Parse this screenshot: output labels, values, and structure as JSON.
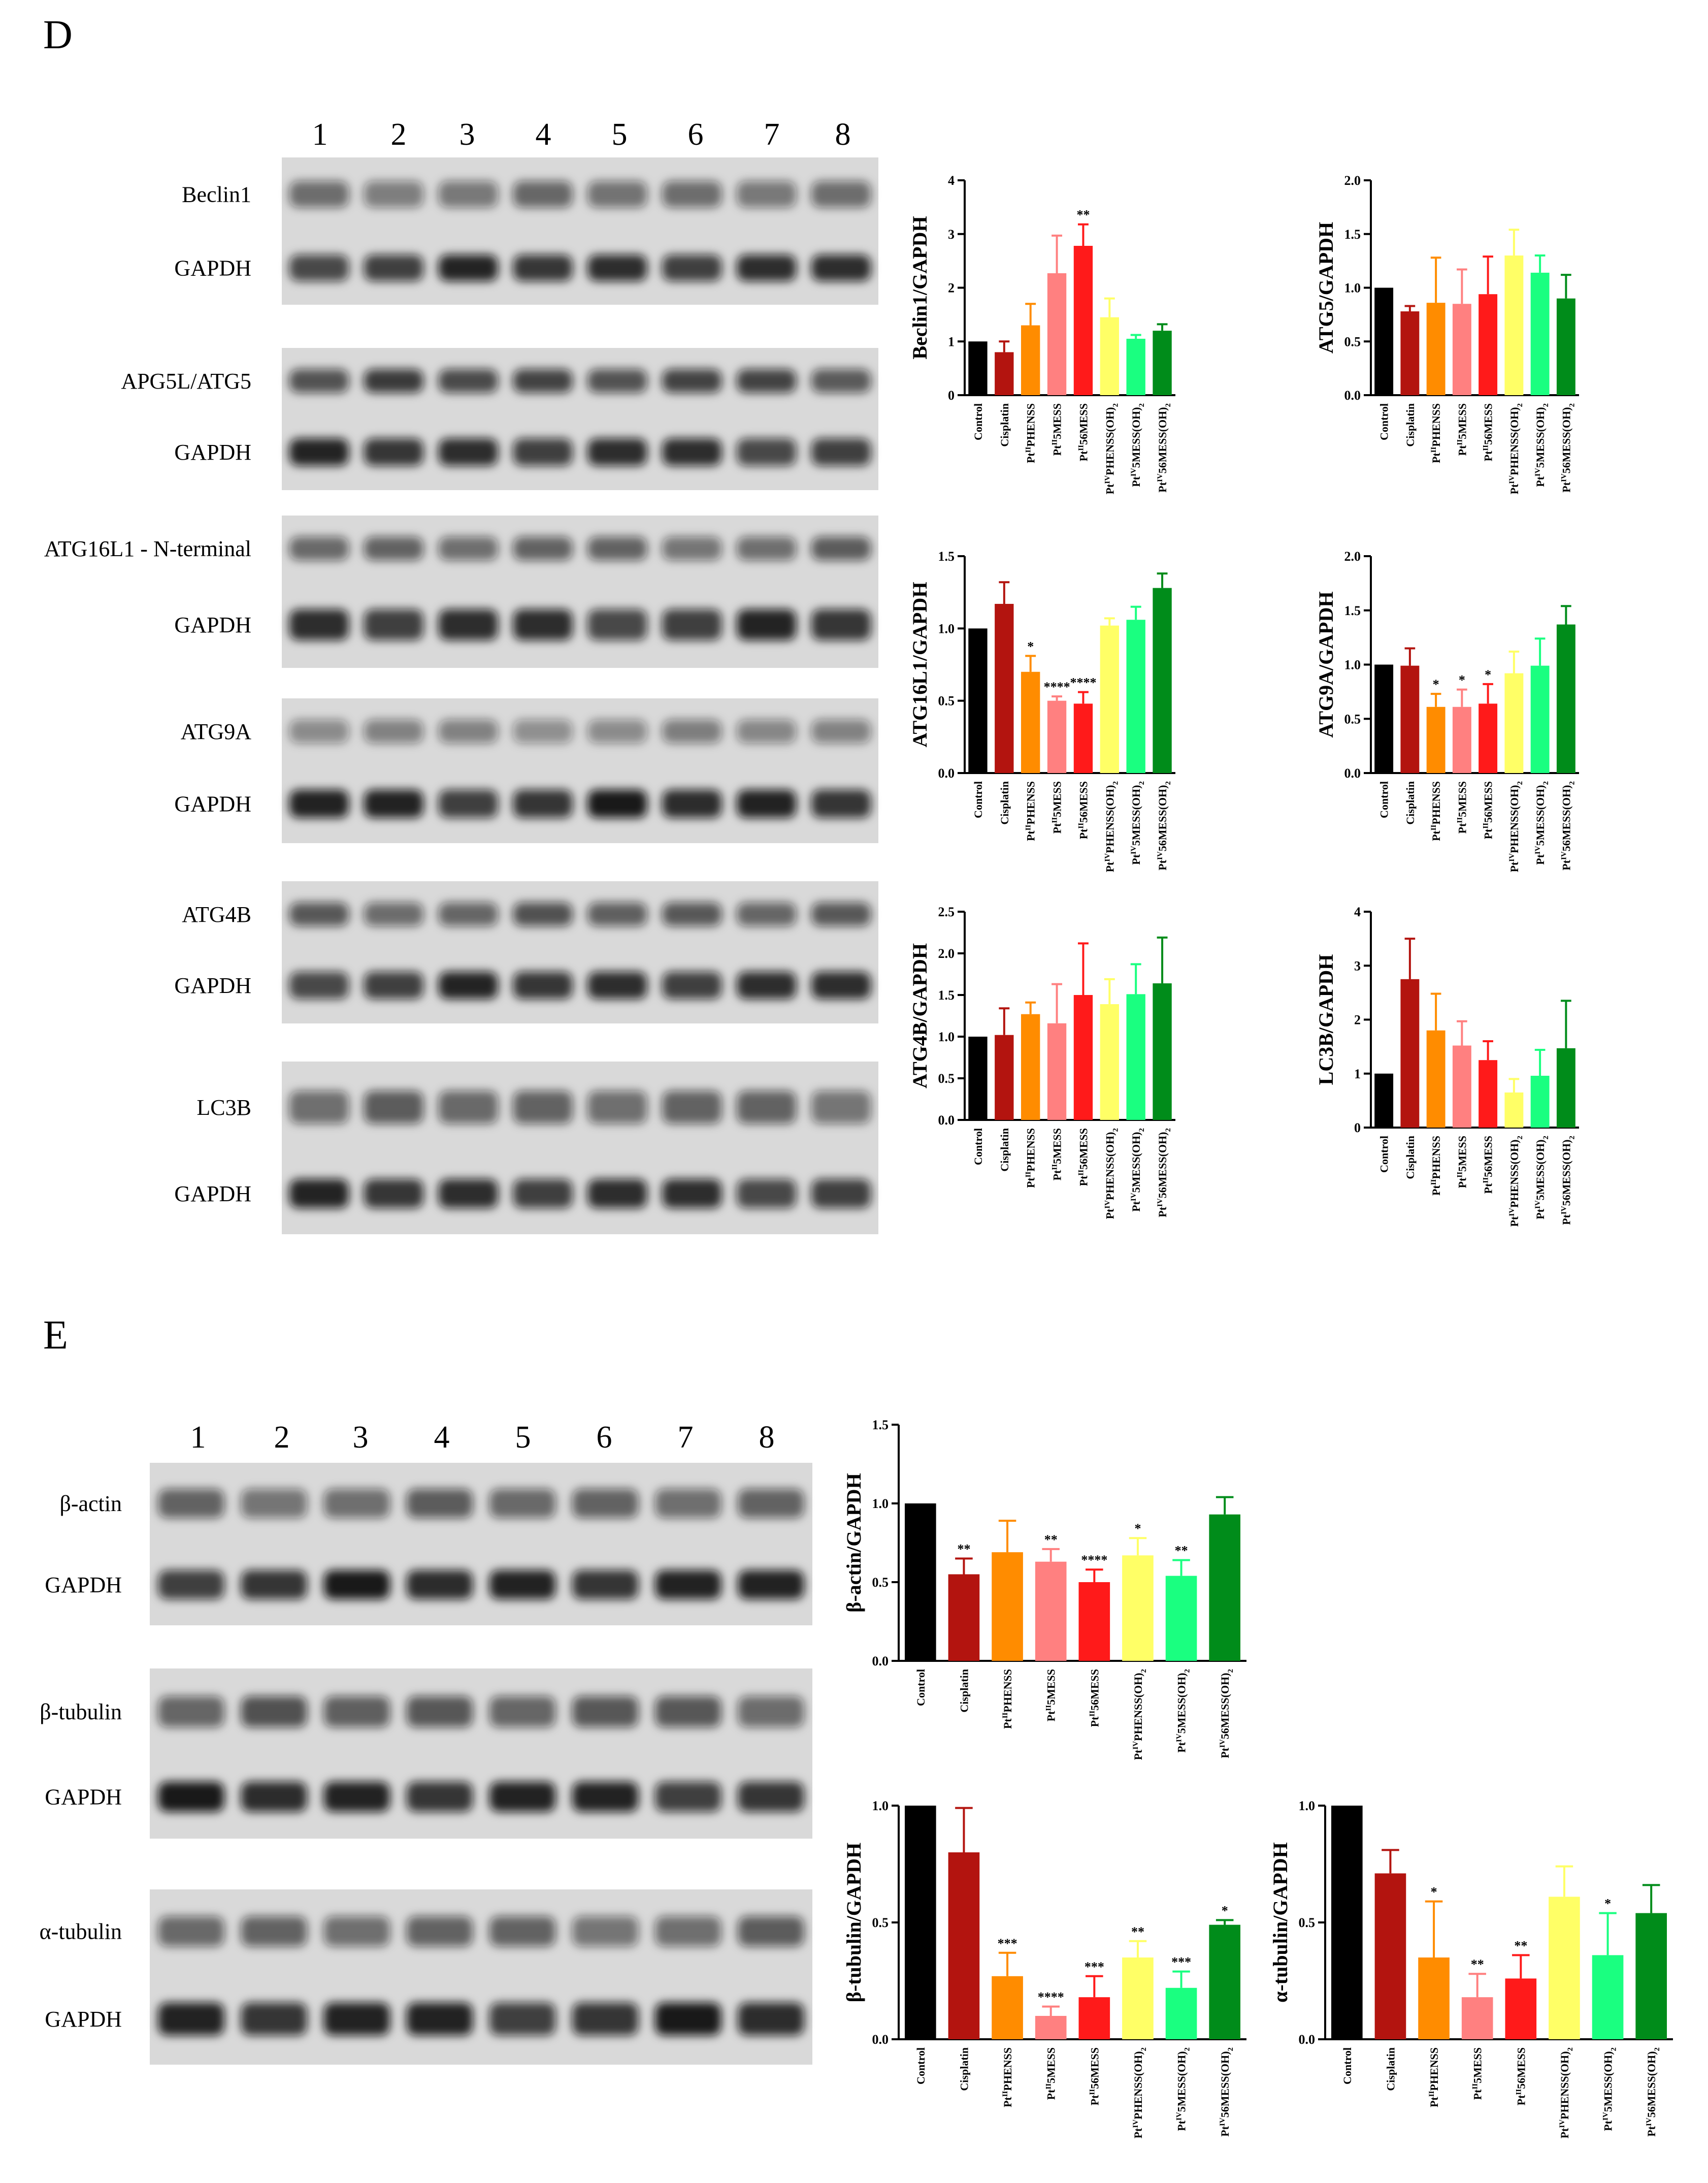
{
  "panels": {
    "D": {
      "letter": "D",
      "lanes": [
        "1",
        "2",
        "3",
        "4",
        "5",
        "6",
        "7",
        "8"
      ],
      "blots": [
        {
          "label": "Beclin1",
          "y": 310,
          "h": 145,
          "dark": 0.55
        },
        {
          "label": "GAPDH",
          "y": 455,
          "h": 145,
          "dark": 0.85
        },
        {
          "label": "APG5L/ATG5",
          "y": 685,
          "h": 130,
          "dark": 0.75
        },
        {
          "label": "GAPDH",
          "y": 815,
          "h": 150,
          "dark": 0.85
        },
        {
          "label": "ATG16L1 - N-terminal",
          "y": 1015,
          "h": 130,
          "dark": 0.6
        },
        {
          "label": "GAPDH",
          "y": 1145,
          "h": 170,
          "dark": 0.85
        },
        {
          "label": "ATG9A",
          "y": 1375,
          "h": 130,
          "dark": 0.45
        },
        {
          "label": "GAPDH",
          "y": 1505,
          "h": 155,
          "dark": 0.9
        },
        {
          "label": "ATG4B",
          "y": 1735,
          "h": 130,
          "dark": 0.65
        },
        {
          "label": "GAPDH",
          "y": 1865,
          "h": 150,
          "dark": 0.85
        },
        {
          "label": "LC3B",
          "y": 2090,
          "h": 180,
          "dark": 0.6
        },
        {
          "label": "GAPDH",
          "y": 2270,
          "h": 160,
          "dark": 0.85
        }
      ],
      "blot_labels_text": [
        "Beclin1",
        "GAPDH",
        "APG5L/ATG5",
        "GAPDH",
        "ATG16L1 - N-terminal",
        "GAPDH",
        "ATG9A",
        "GAPDH",
        "ATG4B",
        "GAPDH",
        "LC3B",
        "GAPDH"
      ]
    },
    "E": {
      "letter": "E",
      "lanes": [
        "1",
        "2",
        "3",
        "4",
        "5",
        "6",
        "7",
        "8"
      ],
      "blots": [
        {
          "label": "β-actin",
          "y": 2880,
          "h": 160,
          "dark": 0.6
        },
        {
          "label": "GAPDH",
          "y": 3040,
          "h": 160,
          "dark": 0.9
        },
        {
          "label": "β-tubulin",
          "y": 3285,
          "h": 170,
          "dark": 0.65
        },
        {
          "label": "GAPDH",
          "y": 3455,
          "h": 165,
          "dark": 0.9
        },
        {
          "label": "α-tubulin",
          "y": 3720,
          "h": 165,
          "dark": 0.6
        },
        {
          "label": "GAPDH",
          "y": 3885,
          "h": 180,
          "dark": 0.9
        }
      ]
    }
  },
  "categories": [
    "Control",
    "Cisplatin",
    "PtIIPHENSS",
    "PtII5MESS",
    "PtII56MESS",
    "PtIVPHENSS(OH)2",
    "PtIV5MESS(OH)2",
    "PtIV56MESS(OH)2"
  ],
  "category_display": [
    {
      "pre": "",
      "sup": "",
      "post": "Control",
      "sub": ""
    },
    {
      "pre": "",
      "sup": "",
      "post": "Cisplatin",
      "sub": ""
    },
    {
      "pre": "Pt",
      "sup": "II",
      "post": "PHENSS",
      "sub": ""
    },
    {
      "pre": "Pt",
      "sup": "II",
      "post": "5MESS",
      "sub": ""
    },
    {
      "pre": "Pt",
      "sup": "II",
      "post": "56MESS",
      "sub": ""
    },
    {
      "pre": "Pt",
      "sup": "IV",
      "post": "PHENSS(OH)",
      "sub": "2"
    },
    {
      "pre": "Pt",
      "sup": "IV",
      "post": "5MESS(OH)",
      "sub": "2"
    },
    {
      "pre": "Pt",
      "sup": "IV",
      "post": "56MESS(OH)",
      "sub": "2"
    }
  ],
  "colors": [
    "#000000",
    "#b3140f",
    "#ff8c00",
    "#ff8080",
    "#ff1a1a",
    "#ffff66",
    "#1aff80",
    "#008c1a"
  ],
  "chart_data": [
    {
      "type": "bar",
      "ylabel": "Beclin1/GAPDH",
      "ylim": [
        0,
        4
      ],
      "yticks": [
        "0",
        "1",
        "2",
        "3",
        "4"
      ],
      "categories": [
        "Control",
        "Cisplatin",
        "PtIIPHENSS",
        "PtII5MESS",
        "PtII56MESS",
        "PtIVPHENSS(OH)2",
        "PtIV5MESS(OH)2",
        "PtIV56MESS(OH)2"
      ],
      "values": [
        1.0,
        0.8,
        1.3,
        2.27,
        2.78,
        1.45,
        1.05,
        1.2
      ],
      "errors": [
        0,
        0.2,
        0.4,
        0.7,
        0.4,
        0.35,
        0.07,
        0.12
      ],
      "significance": [
        "",
        "",
        "",
        "",
        "**",
        "",
        "",
        ""
      ]
    },
    {
      "type": "bar",
      "ylabel": "ATG5/GAPDH",
      "ylim": [
        0,
        2
      ],
      "yticks": [
        "0.0",
        "0.5",
        "1.0",
        "1.5",
        "2.0"
      ],
      "categories": [
        "Control",
        "Cisplatin",
        "PtIIPHENSS",
        "PtII5MESS",
        "PtII56MESS",
        "PtIVPHENSS(OH)2",
        "PtIV5MESS(OH)2",
        "PtIV56MESS(OH)2"
      ],
      "values": [
        1.0,
        0.78,
        0.86,
        0.85,
        0.94,
        1.3,
        1.14,
        0.9
      ],
      "errors": [
        0,
        0.05,
        0.42,
        0.32,
        0.35,
        0.24,
        0.16,
        0.22
      ],
      "significance": [
        "",
        "",
        "",
        "",
        "",
        "",
        "",
        ""
      ]
    },
    {
      "type": "bar",
      "ylabel": "ATG16L1/GAPDH",
      "ylim": [
        0,
        1.5
      ],
      "yticks": [
        "0.0",
        "0.5",
        "1.0",
        "1.5"
      ],
      "categories": [
        "Control",
        "Cisplatin",
        "PtIIPHENSS",
        "PtII5MESS",
        "PtII56MESS",
        "PtIVPHENSS(OH)2",
        "PtIV5MESS(OH)2",
        "PtIV56MESS(OH)2"
      ],
      "values": [
        1.0,
        1.17,
        0.7,
        0.5,
        0.48,
        1.02,
        1.06,
        1.28
      ],
      "errors": [
        0,
        0.15,
        0.11,
        0.03,
        0.08,
        0.05,
        0.09,
        0.1
      ],
      "significance": [
        "",
        "",
        "*",
        "****",
        "****",
        "",
        "",
        ""
      ]
    },
    {
      "type": "bar",
      "ylabel": "ATG9A/GAPDH",
      "ylim": [
        0,
        2
      ],
      "yticks": [
        "0.0",
        "0.5",
        "1.0",
        "1.5",
        "2.0"
      ],
      "categories": [
        "Control",
        "Cisplatin",
        "PtIIPHENSS",
        "PtII5MESS",
        "PtII56MESS",
        "PtIVPHENSS(OH)2",
        "PtIV5MESS(OH)2",
        "PtIV56MESS(OH)2"
      ],
      "values": [
        1.0,
        0.99,
        0.61,
        0.61,
        0.64,
        0.92,
        0.99,
        1.37
      ],
      "errors": [
        0,
        0.16,
        0.12,
        0.16,
        0.18,
        0.2,
        0.25,
        0.17
      ],
      "significance": [
        "",
        "",
        "*",
        "*",
        "*",
        "",
        "",
        ""
      ]
    },
    {
      "type": "bar",
      "ylabel": "ATG4B/GAPDH",
      "ylim": [
        0,
        2.5
      ],
      "yticks": [
        "0.0",
        "0.5",
        "1.0",
        "1.5",
        "2.0",
        "2.5"
      ],
      "categories": [
        "Control",
        "Cisplatin",
        "PtIIPHENSS",
        "PtII5MESS",
        "PtII56MESS",
        "PtIVPHENSS(OH)2",
        "PtIV5MESS(OH)2",
        "PtIV56MESS(OH)2"
      ],
      "values": [
        1.0,
        1.02,
        1.27,
        1.16,
        1.5,
        1.39,
        1.51,
        1.64
      ],
      "errors": [
        0,
        0.32,
        0.14,
        0.47,
        0.62,
        0.3,
        0.36,
        0.55
      ],
      "significance": [
        "",
        "",
        "",
        "",
        "",
        "",
        "",
        ""
      ]
    },
    {
      "type": "bar",
      "ylabel": "LC3B/GAPDH",
      "ylim": [
        0,
        4
      ],
      "yticks": [
        "0",
        "1",
        "2",
        "3",
        "4"
      ],
      "categories": [
        "Control",
        "Cisplatin",
        "PtIIPHENSS",
        "PtII5MESS",
        "PtII56MESS",
        "PtIVPHENSS(OH)2",
        "PtIV5MESS(OH)2",
        "PtIV56MESS(OH)2"
      ],
      "values": [
        1.0,
        2.75,
        1.8,
        1.52,
        1.25,
        0.65,
        0.96,
        1.47
      ],
      "errors": [
        0,
        0.75,
        0.68,
        0.45,
        0.35,
        0.25,
        0.48,
        0.88
      ],
      "significance": [
        "",
        "",
        "",
        "",
        "",
        "",
        "",
        ""
      ]
    },
    {
      "type": "bar",
      "ylabel": "β-actin/GAPDH",
      "ylim": [
        0,
        1.5
      ],
      "yticks": [
        "0.0",
        "0.5",
        "1.0",
        "1.5"
      ],
      "categories": [
        "Control",
        "Cisplatin",
        "PtIIPHENSS",
        "PtII5MESS",
        "PtII56MESS",
        "PtIVPHENSS(OH)2",
        "PtIV5MESS(OH)2",
        "PtIV56MESS(OH)2"
      ],
      "values": [
        1.0,
        0.55,
        0.69,
        0.63,
        0.5,
        0.67,
        0.54,
        0.93
      ],
      "errors": [
        0,
        0.1,
        0.2,
        0.08,
        0.08,
        0.11,
        0.1,
        0.11
      ],
      "significance": [
        "",
        "**",
        "",
        "**",
        "****",
        "*",
        "**",
        ""
      ]
    },
    {
      "type": "bar",
      "ylabel": "β-tubulin/GAPDH",
      "ylim": [
        0,
        1
      ],
      "yticks": [
        "0.0",
        "0.5",
        "1.0"
      ],
      "categories": [
        "Control",
        "Cisplatin",
        "PtIIPHENSS",
        "PtII5MESS",
        "PtII56MESS",
        "PtIVPHENSS(OH)2",
        "PtIV5MESS(OH)2",
        "PtIV56MESS(OH)2"
      ],
      "values": [
        1.0,
        0.8,
        0.27,
        0.1,
        0.18,
        0.35,
        0.22,
        0.49
      ],
      "errors": [
        0,
        0.19,
        0.1,
        0.04,
        0.09,
        0.07,
        0.07,
        0.02
      ],
      "significance": [
        "",
        "",
        "***",
        "****",
        "***",
        "**",
        "***",
        "*"
      ]
    },
    {
      "type": "bar",
      "ylabel": "α-tubulin/GAPDH",
      "ylim": [
        0,
        1
      ],
      "yticks": [
        "0.0",
        "0.5",
        "1.0"
      ],
      "categories": [
        "Control",
        "Cisplatin",
        "PtIIPHENSS",
        "PtII5MESS",
        "PtII56MESS",
        "PtIVPHENSS(OH)2",
        "PtIV5MESS(OH)2",
        "PtIV56MESS(OH)2"
      ],
      "values": [
        1.0,
        0.71,
        0.35,
        0.18,
        0.26,
        0.61,
        0.36,
        0.54
      ],
      "errors": [
        0,
        0.1,
        0.24,
        0.1,
        0.1,
        0.13,
        0.18,
        0.12
      ],
      "significance": [
        "",
        "",
        "*",
        "**",
        "**",
        "",
        "*",
        ""
      ]
    }
  ]
}
